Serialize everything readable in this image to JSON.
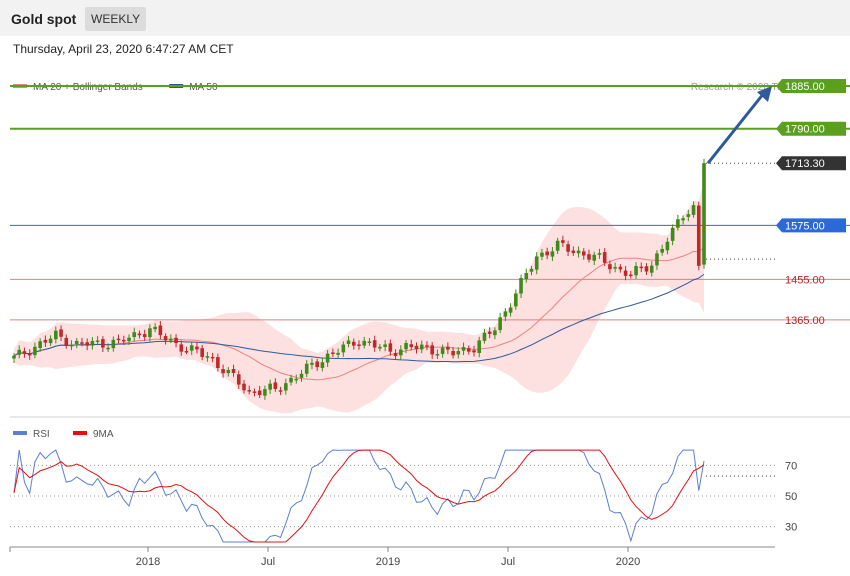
{
  "header": {
    "title": "Gold spot",
    "period": "WEEKLY"
  },
  "timestamp": "Thursday, April 23, 2020 6:47:27 AM CET",
  "legend_main": [
    {
      "label": "MA 20 + Bollinger Bands",
      "color": "#f08080"
    },
    {
      "label": "MA 50",
      "color": "#2f5a9a"
    }
  ],
  "copyright": "Research © 2020 Trading Central",
  "colors": {
    "up": "#3f8a1a",
    "down": "#c0282a",
    "target": "#5aa01e",
    "pivot": "#2a6ad8",
    "support": "#e08080",
    "last": "#333333",
    "arrow": "#2f5a9a",
    "band": "#fde0e0"
  },
  "chart_data": [
    {
      "type": "candlestick",
      "series_name": "Gold spot",
      "period": "weekly",
      "x_ticks": [
        "2018",
        "Jul",
        "2019",
        "Jul",
        "2020"
      ],
      "ylim": [
        1160,
        1925
      ],
      "levels": [
        {
          "value": 1885,
          "label": "1885.00",
          "kind": "target"
        },
        {
          "value": 1790,
          "label": "1790.00",
          "kind": "target"
        },
        {
          "value": 1713.3,
          "label": "1713.30",
          "kind": "last"
        },
        {
          "value": 1575,
          "label": "1575.00",
          "kind": "pivot"
        },
        {
          "value": 1455,
          "label": "1455.00",
          "kind": "support"
        },
        {
          "value": 1365,
          "label": "1365.00",
          "kind": "support"
        }
      ],
      "overlays": [
        "MA 20 + Bollinger Bands",
        "MA 50"
      ]
    },
    {
      "type": "line",
      "series": [
        {
          "name": "RSI"
        },
        {
          "name": "9MA"
        }
      ],
      "y_ticks": [
        "70",
        "50",
        "30"
      ],
      "ylim": [
        18,
        82
      ]
    }
  ],
  "rsi_legend": [
    {
      "label": "RSI",
      "color": "#5b7fd0"
    },
    {
      "label": "9MA",
      "color": "#e01010"
    }
  ]
}
